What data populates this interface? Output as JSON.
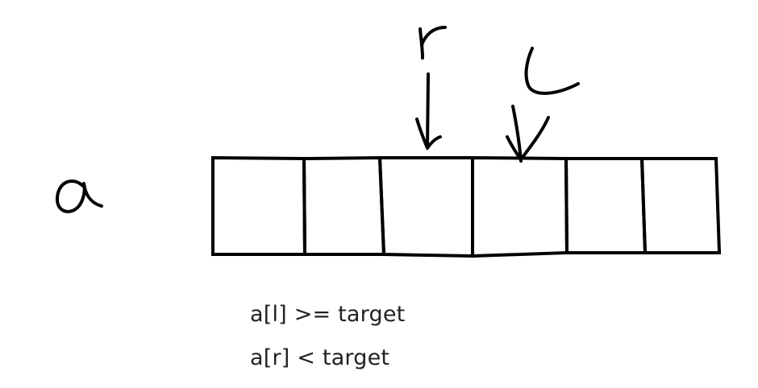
{
  "array": {
    "name_label": "a",
    "cell_count": 6
  },
  "pointers": {
    "r": {
      "label": "r",
      "cell_index": 2
    },
    "l": {
      "label": "l",
      "cell_index": 3
    }
  },
  "conditions": {
    "left": "a[l] >= target",
    "right": "a[r] < target"
  },
  "colors": {
    "ink": "#000000",
    "text": "#222222",
    "background": "#ffffff"
  }
}
